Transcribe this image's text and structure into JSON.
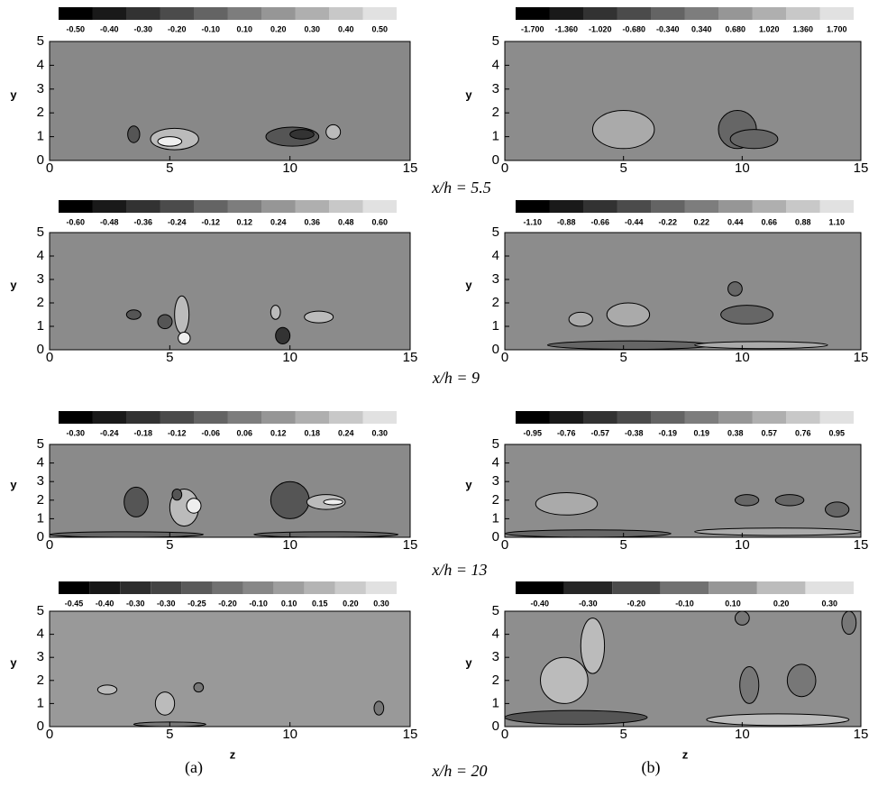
{
  "panels": [
    {
      "colorbar": [
        "-0.50",
        "-0.40",
        "-0.30",
        "-0.20",
        "-0.10",
        "0.10",
        "0.20",
        "0.30",
        "0.40",
        "0.50"
      ],
      "xlim": [
        0,
        15
      ],
      "ylim": [
        0,
        5
      ],
      "xticks": [
        0,
        5,
        10,
        15
      ],
      "yticks": [
        0,
        1,
        2,
        3,
        4,
        5
      ]
    },
    {
      "colorbar": [
        "-1.700",
        "-1.360",
        "-1.020",
        "-0.680",
        "-0.340",
        "0.340",
        "0.680",
        "1.020",
        "1.360",
        "1.700"
      ],
      "xlim": [
        0,
        15
      ],
      "ylim": [
        0,
        5
      ],
      "xticks": [
        0,
        5,
        10,
        15
      ],
      "yticks": [
        0,
        1,
        2,
        3,
        4,
        5
      ]
    },
    {
      "colorbar": [
        "-0.60",
        "-0.48",
        "-0.36",
        "-0.24",
        "-0.12",
        "0.12",
        "0.24",
        "0.36",
        "0.48",
        "0.60"
      ],
      "xlim": [
        0,
        15
      ],
      "ylim": [
        0,
        5
      ],
      "xticks": [
        0,
        5,
        10,
        15
      ],
      "yticks": [
        0,
        1,
        2,
        3,
        4,
        5
      ]
    },
    {
      "colorbar": [
        "-1.10",
        "-0.88",
        "-0.66",
        "-0.44",
        "-0.22",
        "0.22",
        "0.44",
        "0.66",
        "0.88",
        "1.10"
      ],
      "xlim": [
        0,
        15
      ],
      "ylim": [
        0,
        5
      ],
      "xticks": [
        0,
        5,
        10,
        15
      ],
      "yticks": [
        0,
        1,
        2,
        3,
        4,
        5
      ]
    },
    {
      "colorbar": [
        "-0.30",
        "-0.24",
        "-0.18",
        "-0.12",
        "-0.06",
        "0.06",
        "0.12",
        "0.18",
        "0.24",
        "0.30"
      ],
      "xlim": [
        0,
        15
      ],
      "ylim": [
        0,
        5
      ],
      "xticks": [
        0,
        5,
        10,
        15
      ],
      "yticks": [
        0,
        1,
        2,
        3,
        4,
        5
      ]
    },
    {
      "colorbar": [
        "-0.95",
        "-0.76",
        "-0.57",
        "-0.38",
        "-0.19",
        "0.19",
        "0.38",
        "0.57",
        "0.76",
        "0.95"
      ],
      "xlim": [
        0,
        15
      ],
      "ylim": [
        0,
        5
      ],
      "xticks": [
        0,
        5,
        10,
        15
      ],
      "yticks": [
        0,
        1,
        2,
        3,
        4,
        5
      ]
    },
    {
      "colorbar": [
        "-0.45",
        "-0.40",
        "-0.30",
        "-0.30",
        "-0.25",
        "-0.20",
        "-0.10",
        "0.10",
        "0.15",
        "0.20",
        "0.30"
      ],
      "xlim": [
        0,
        15
      ],
      "ylim": [
        0,
        5
      ],
      "xticks": [
        0,
        5,
        10,
        15
      ],
      "yticks": [
        0,
        1,
        2,
        3,
        4,
        5
      ]
    },
    {
      "colorbar": [
        "-0.40",
        "-0.30",
        "-0.20",
        "-0.10",
        "0.10",
        "0.20",
        "0.30"
      ],
      "xlim": [
        0,
        15
      ],
      "ylim": [
        0,
        5
      ],
      "xticks": [
        0,
        5,
        10,
        15
      ],
      "yticks": [
        0,
        1,
        2,
        3,
        4,
        5
      ]
    }
  ],
  "y_label": "y",
  "x_label": "z",
  "captions": [
    "x/h = 5.5",
    "x/h = 9",
    "x/h = 13",
    "x/h = 20"
  ],
  "panel_labels": [
    "(a)",
    "(b)"
  ]
}
